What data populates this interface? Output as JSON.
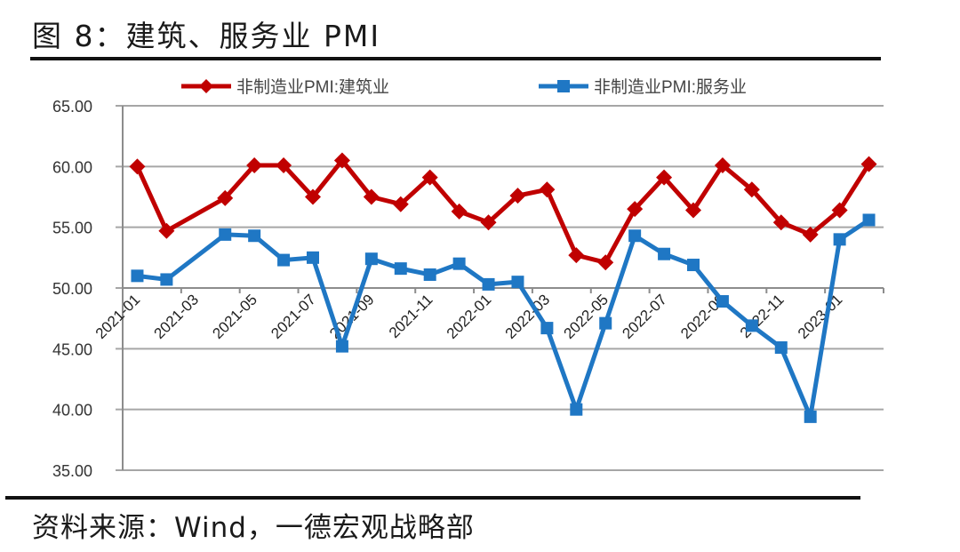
{
  "header": {
    "title": "图 8：建筑、服务业 PMI"
  },
  "footer": {
    "source": "资料来源：Wind，一德宏观战略部"
  },
  "colors": {
    "construction": "#C00000",
    "services": "#1F77C4",
    "grid": "#A6A6A6",
    "axis": "#8C8C8C",
    "rule": "#111111"
  },
  "chart_data": {
    "type": "line",
    "title": "图 8：建筑、服务业 PMI",
    "xlabel": "",
    "ylabel": "",
    "ylim": [
      35,
      65
    ],
    "yticks": [
      "65.00",
      "60.00",
      "55.00",
      "50.00",
      "45.00",
      "40.00",
      "35.00"
    ],
    "grid": true,
    "legend_position": "top",
    "x_axis_crosses_at": 50,
    "categories": [
      "2021-01",
      "2021-02",
      "2021-03",
      "2021-04",
      "2021-05",
      "2021-06",
      "2021-07",
      "2021-08",
      "2021-09",
      "2021-10",
      "2021-11",
      "2021-12",
      "2022-01",
      "2022-02",
      "2022-03",
      "2022-04",
      "2022-05",
      "2022-06",
      "2022-07",
      "2022-08",
      "2022-09",
      "2022-10",
      "2022-11",
      "2022-12",
      "2023-01",
      "2023-02"
    ],
    "xtick_labels": [
      "2021-01",
      "2021-03",
      "2021-05",
      "2021-07",
      "2021-09",
      "2021-11",
      "2022-01",
      "2022-03",
      "2022-05",
      "2022-07",
      "2022-09",
      "2022-11",
      "2023-01"
    ],
    "series": [
      {
        "name": "非制造业PMI:建筑业",
        "marker": "diamond",
        "color": "#C00000",
        "values": [
          60.0,
          54.7,
          null,
          57.4,
          60.1,
          60.1,
          57.5,
          60.5,
          57.5,
          56.9,
          59.1,
          56.3,
          55.4,
          57.6,
          58.1,
          52.7,
          52.1,
          56.5,
          59.1,
          56.4,
          60.1,
          58.1,
          55.4,
          54.4,
          56.4,
          60.2
        ]
      },
      {
        "name": "非制造业PMI:服务业",
        "marker": "square",
        "color": "#1F77C4",
        "values": [
          51.0,
          50.7,
          null,
          54.4,
          54.3,
          52.3,
          52.5,
          45.2,
          52.4,
          51.6,
          51.1,
          52.0,
          50.3,
          50.5,
          46.7,
          40.0,
          47.1,
          54.3,
          52.8,
          51.9,
          48.9,
          46.9,
          45.1,
          39.4,
          54.0,
          55.6
        ]
      }
    ]
  }
}
